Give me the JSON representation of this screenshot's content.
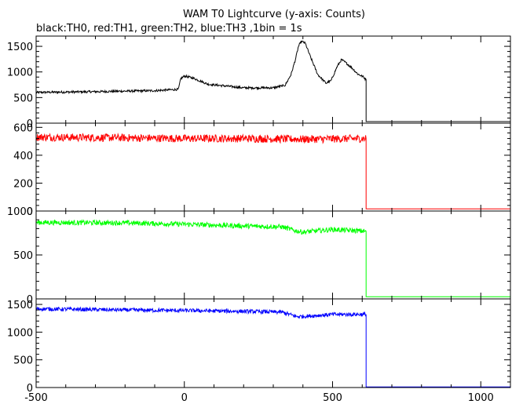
{
  "chart_data": {
    "type": "line",
    "title": "WAM T0 Lightcurve (y-axis: Counts)",
    "subtitle": "black:TH0, red:TH1, green:TH2, blue:TH3 ,1bin = 1s",
    "x_range": [
      -500,
      1100
    ],
    "x_ticks": [
      -500,
      0,
      500,
      1000
    ],
    "x_tick_labels": [
      "-500",
      "0",
      "500",
      "1000"
    ],
    "panels": [
      {
        "name": "TH0",
        "color": "#000000",
        "ylim": [
          0,
          1700
        ],
        "y_ticks": [
          0,
          500,
          1000,
          1500
        ],
        "y_tick_labels": [
          "0",
          "500",
          "1000",
          "1500"
        ],
        "noise": 22,
        "points": [
          [
            -500,
            600
          ],
          [
            -300,
            615
          ],
          [
            -100,
            635
          ],
          [
            -20,
            660
          ],
          [
            -12,
            870
          ],
          [
            0,
            920
          ],
          [
            30,
            880
          ],
          [
            80,
            760
          ],
          [
            200,
            690
          ],
          [
            300,
            690
          ],
          [
            340,
            740
          ],
          [
            360,
            950
          ],
          [
            375,
            1250
          ],
          [
            385,
            1500
          ],
          [
            395,
            1600
          ],
          [
            408,
            1560
          ],
          [
            425,
            1300
          ],
          [
            450,
            950
          ],
          [
            478,
            780
          ],
          [
            495,
            830
          ],
          [
            515,
            1100
          ],
          [
            530,
            1240
          ],
          [
            545,
            1180
          ],
          [
            565,
            1080
          ],
          [
            585,
            960
          ],
          [
            605,
            900
          ],
          [
            612,
            850
          ],
          [
            613,
            30
          ],
          [
            1100,
            30
          ]
        ]
      },
      {
        "name": "TH1",
        "color": "#ff0000",
        "ylim": [
          0,
          630
        ],
        "y_ticks": [
          0,
          200,
          400,
          600
        ],
        "y_tick_labels": [
          "0",
          "200",
          "400",
          "600"
        ],
        "noise": 28,
        "points": [
          [
            -500,
            530
          ],
          [
            -200,
            525
          ],
          [
            0,
            520
          ],
          [
            200,
            520
          ],
          [
            400,
            515
          ],
          [
            612,
            520
          ],
          [
            613,
            15
          ],
          [
            1100,
            15
          ]
        ]
      },
      {
        "name": "TH2",
        "color": "#00ff00",
        "ylim": [
          0,
          1000
        ],
        "y_ticks": [
          0,
          500,
          1000
        ],
        "y_tick_labels": [
          "0",
          "500",
          "1000"
        ],
        "noise": 28,
        "points": [
          [
            -500,
            870
          ],
          [
            -200,
            865
          ],
          [
            0,
            850
          ],
          [
            200,
            830
          ],
          [
            330,
            820
          ],
          [
            370,
            780
          ],
          [
            400,
            760
          ],
          [
            500,
            790
          ],
          [
            612,
            770
          ],
          [
            613,
            25
          ],
          [
            1100,
            25
          ]
        ]
      },
      {
        "name": "TH3",
        "color": "#0000ff",
        "ylim": [
          0,
          1600
        ],
        "y_ticks": [
          0,
          500,
          1000,
          1500
        ],
        "y_tick_labels": [
          "0",
          "500",
          "1000",
          "1500"
        ],
        "noise": 35,
        "points": [
          [
            -500,
            1420
          ],
          [
            -200,
            1400
          ],
          [
            0,
            1390
          ],
          [
            200,
            1375
          ],
          [
            330,
            1360
          ],
          [
            380,
            1280
          ],
          [
            420,
            1290
          ],
          [
            500,
            1320
          ],
          [
            612,
            1320
          ],
          [
            613,
            10
          ],
          [
            1100,
            10
          ]
        ]
      }
    ]
  }
}
